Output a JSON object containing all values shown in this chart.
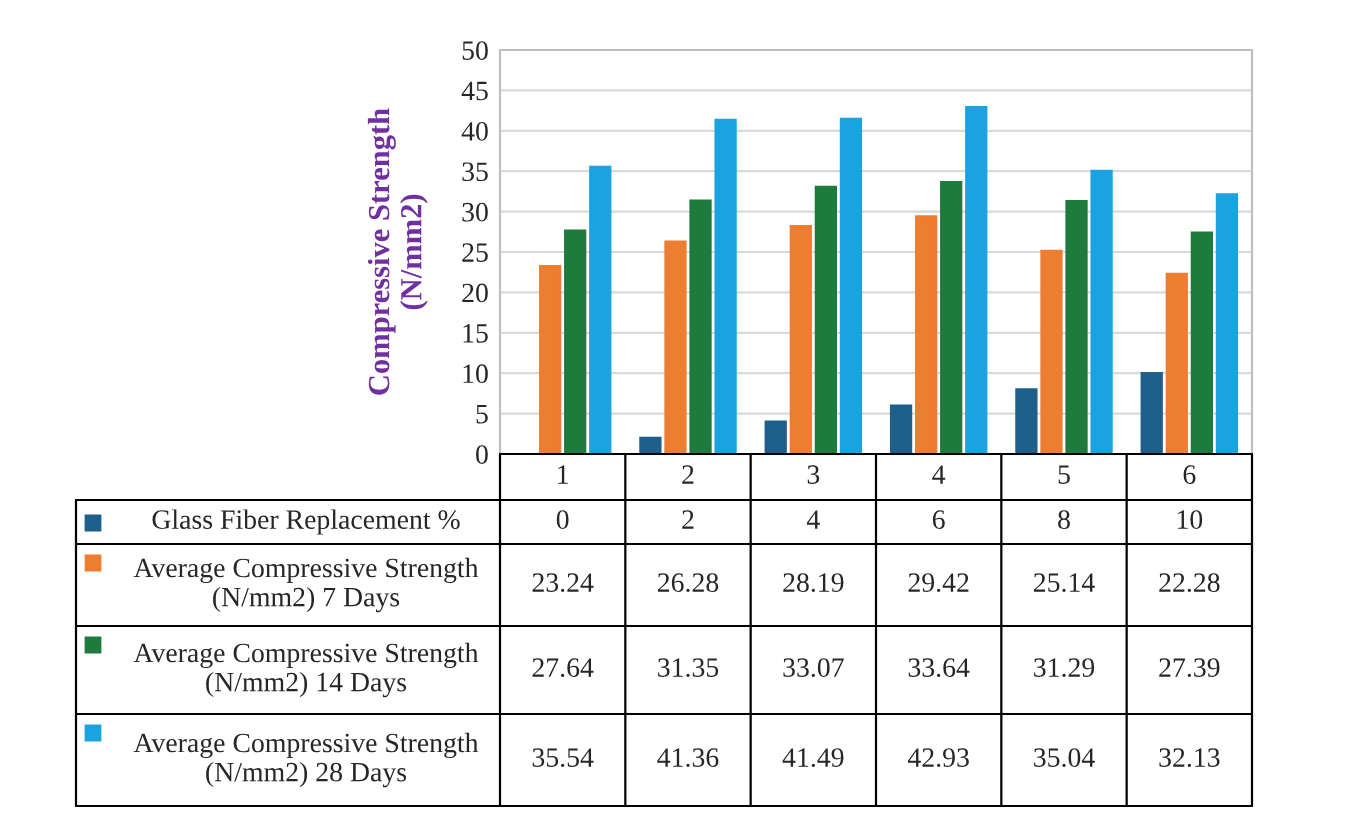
{
  "chart_data": {
    "type": "bar",
    "ylabel": "Compressive Strength\n(N/mm2)",
    "categories": [
      "1",
      "2",
      "3",
      "4",
      "5",
      "6"
    ],
    "series": [
      {
        "name": "Glass Fiber Replacement %",
        "color": "#1f5f8b",
        "values": [
          0,
          2,
          4,
          6,
          8,
          10
        ]
      },
      {
        "name": "Average Compressive Strength (N/mm2) 7 Days",
        "color": "#ed7d31",
        "values": [
          23.24,
          26.28,
          28.19,
          29.42,
          25.14,
          22.28
        ]
      },
      {
        "name": "Average Compressive Strength (N/mm2) 14 Days",
        "color": "#1e7b3e",
        "values": [
          27.64,
          31.35,
          33.07,
          33.64,
          31.29,
          27.39
        ]
      },
      {
        "name": "Average Compressive Strength (N/mm2) 28 Days",
        "color": "#1aa3e0",
        "values": [
          35.54,
          41.36,
          41.49,
          42.93,
          35.04,
          32.13
        ]
      }
    ],
    "ylim": [
      0,
      50
    ],
    "yticks": [
      0,
      5,
      10,
      15,
      20,
      25,
      30,
      35,
      40,
      45,
      50
    ],
    "grid": "y",
    "legend": "bottom",
    "data_labels": true
  }
}
